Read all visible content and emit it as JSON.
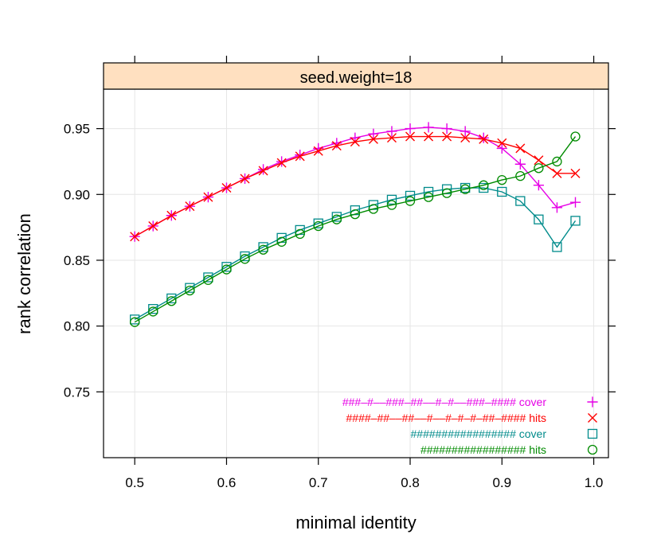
{
  "chart_data": {
    "type": "line",
    "panel_strip": "seed.weight=18",
    "xlabel": "minimal identity",
    "ylabel": "rank correlation",
    "xlim": [
      0.466,
      1.016
    ],
    "ylim": [
      0.7,
      0.98
    ],
    "xticks": [
      0.5,
      0.6,
      0.7,
      0.8,
      0.9,
      1.0
    ],
    "xtick_labels": [
      "0.5",
      "0.6",
      "0.7",
      "0.8",
      "0.9",
      "1.0"
    ],
    "yticks": [
      0.75,
      0.8,
      0.85,
      0.9,
      0.95
    ],
    "ytick_labels": [
      "0.75",
      "0.80",
      "0.85",
      "0.90",
      "0.95"
    ],
    "grid": true,
    "x": [
      0.5,
      0.52,
      0.54,
      0.56,
      0.58,
      0.6,
      0.62,
      0.64,
      0.66,
      0.68,
      0.7,
      0.72,
      0.74,
      0.76,
      0.78,
      0.8,
      0.82,
      0.84,
      0.86,
      0.88,
      0.9,
      0.92,
      0.94,
      0.96,
      0.98
    ],
    "series": [
      {
        "name": "###–#––###–##––#–#––###–#### cover",
        "color": "#e600e6",
        "marker": "plus",
        "values": [
          0.868,
          0.876,
          0.884,
          0.891,
          0.898,
          0.905,
          0.912,
          0.919,
          0.925,
          0.93,
          0.935,
          0.939,
          0.943,
          0.946,
          0.948,
          0.95,
          0.951,
          0.95,
          0.948,
          0.943,
          0.935,
          0.923,
          0.907,
          0.89,
          0.894
        ]
      },
      {
        "name": "####–##––##––#––#–#–#–##–#### hits",
        "color": "#ff0000",
        "marker": "cross",
        "values": [
          0.868,
          0.876,
          0.884,
          0.891,
          0.898,
          0.905,
          0.912,
          0.918,
          0.924,
          0.929,
          0.933,
          0.937,
          0.94,
          0.942,
          0.943,
          0.944,
          0.944,
          0.944,
          0.943,
          0.942,
          0.939,
          0.935,
          0.926,
          0.916,
          0.916
        ]
      },
      {
        "name": "################# cover",
        "color": "#008b8b",
        "marker": "square",
        "values": [
          0.805,
          0.813,
          0.821,
          0.829,
          0.837,
          0.845,
          0.853,
          0.86,
          0.867,
          0.873,
          0.878,
          0.883,
          0.888,
          0.892,
          0.896,
          0.899,
          0.902,
          0.904,
          0.905,
          0.905,
          0.902,
          0.895,
          0.881,
          0.86,
          0.88
        ]
      },
      {
        "name": "################# hits",
        "color": "#008b00",
        "marker": "circle",
        "values": [
          0.803,
          0.811,
          0.819,
          0.827,
          0.835,
          0.843,
          0.851,
          0.858,
          0.864,
          0.87,
          0.876,
          0.881,
          0.885,
          0.889,
          0.892,
          0.895,
          0.898,
          0.901,
          0.904,
          0.907,
          0.911,
          0.914,
          0.92,
          0.925,
          0.944
        ]
      }
    ],
    "legend_position": "bottom-right inside panel"
  }
}
